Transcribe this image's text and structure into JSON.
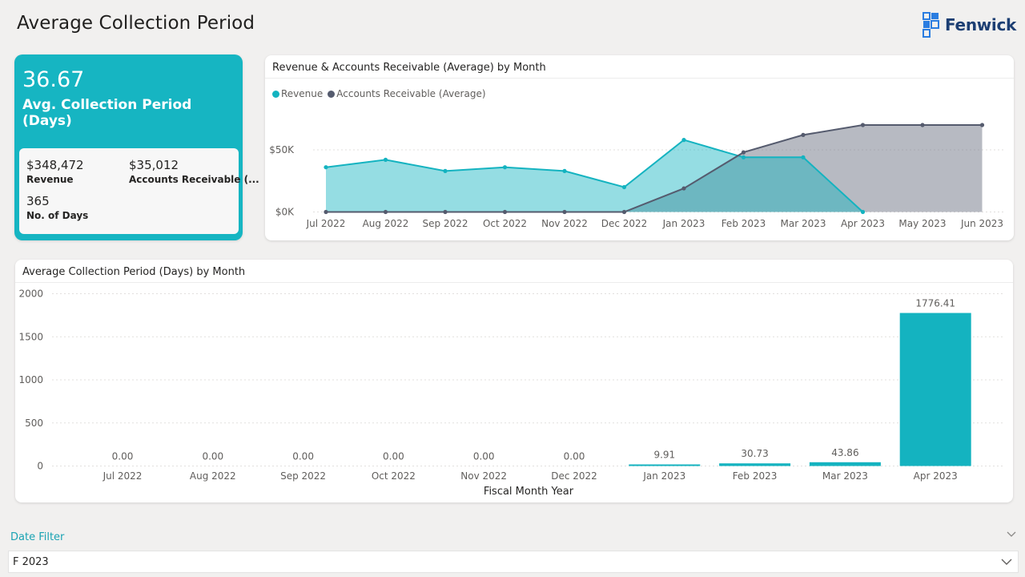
{
  "page": {
    "title": "Average Collection Period"
  },
  "brand": {
    "name": "Fenwick",
    "color": "#1d3f73",
    "accent": "#2a7de1"
  },
  "kpi": {
    "value": "36.67",
    "label": "Avg. Collection Period (Days)",
    "metrics": [
      {
        "value": "$348,472",
        "label": "Revenue"
      },
      {
        "value": "$35,012",
        "label": "Accounts Receivable (..."
      },
      {
        "value": "365",
        "label": "No. of Days"
      }
    ]
  },
  "colors": {
    "revenue": "#14b3c0",
    "ar": "#555b6e",
    "bar": "#14b3c0",
    "kpi_bg": "#16b5c2"
  },
  "chart_data": [
    {
      "type": "area",
      "title": "Revenue & Accounts Receivable (Average) by Month",
      "x": [
        "Jul 2022",
        "Aug 2022",
        "Sep 2022",
        "Oct 2022",
        "Nov 2022",
        "Dec 2022",
        "Jan 2023",
        "Feb 2023",
        "Mar 2023",
        "Apr 2023",
        "May 2023",
        "Jun 2023"
      ],
      "y_ticks": [
        "$0K",
        "$50K"
      ],
      "ylim": [
        0,
        68000
      ],
      "legend_position": "top-left",
      "series": [
        {
          "name": "Revenue",
          "color": "#14b3c0",
          "values": [
            36000,
            42000,
            33000,
            36000,
            33000,
            20000,
            58000,
            44000,
            44000,
            0,
            null,
            null
          ]
        },
        {
          "name": "Accounts Receivable (Average)",
          "color": "#555b6e",
          "values": [
            0,
            0,
            0,
            0,
            0,
            0,
            19000,
            48000,
            62000,
            70000,
            70000,
            70000
          ]
        }
      ]
    },
    {
      "type": "bar",
      "title": "Average Collection Period (Days) by Month",
      "xlabel": "Fiscal Month Year",
      "ylabel": "",
      "categories": [
        "Jul 2022",
        "Aug 2022",
        "Sep 2022",
        "Oct 2022",
        "Nov 2022",
        "Dec 2022",
        "Jan 2023",
        "Feb 2023",
        "Mar 2023",
        "Apr 2023"
      ],
      "values": [
        0,
        0,
        0,
        0,
        0,
        0,
        9.91,
        30.73,
        43.86,
        1776.41
      ],
      "data_labels": [
        "0.00",
        "0.00",
        "0.00",
        "0.00",
        "0.00",
        "0.00",
        "9.91",
        "30.73",
        "43.86",
        "1776.41"
      ],
      "y_ticks": [
        0,
        500,
        1000,
        1500,
        2000
      ],
      "ylim": [
        0,
        2000
      ],
      "grid": true
    }
  ],
  "filter": {
    "label": "Date Filter",
    "value": "F 2023"
  }
}
